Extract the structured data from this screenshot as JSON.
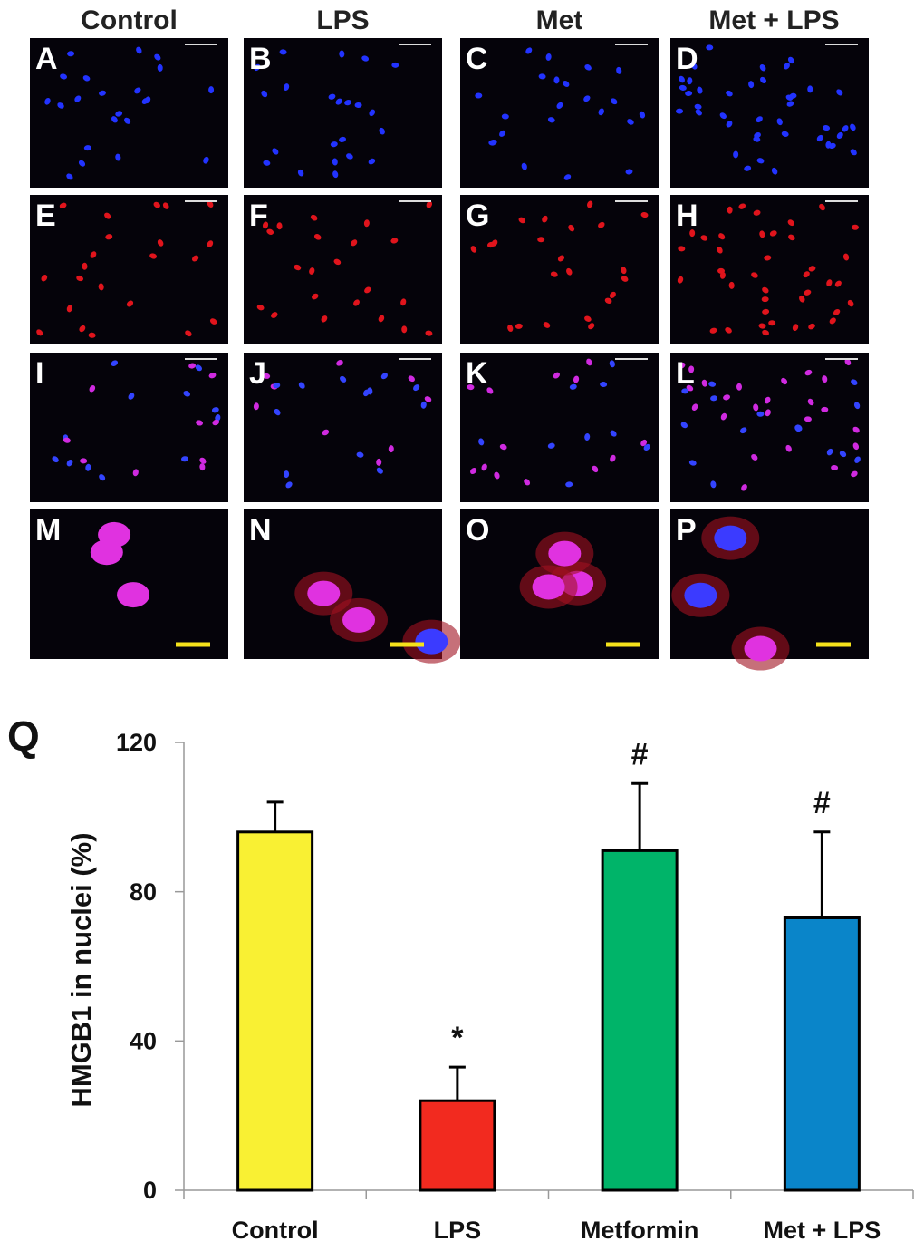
{
  "column_headers": [
    "Control",
    "LPS",
    "Met",
    "Met + LPS"
  ],
  "panels": [
    [
      "A",
      "B",
      "C",
      "D"
    ],
    [
      "E",
      "F",
      "G",
      "H"
    ],
    [
      "I",
      "J",
      "K",
      "L"
    ],
    [
      "M",
      "N",
      "O",
      "P"
    ]
  ],
  "figure_label": "Q",
  "chart_data": {
    "type": "bar",
    "y_label": "HMGB1 in nuclei (%)",
    "categories": [
      "Control",
      "LPS",
      "Metformin",
      "Met + LPS"
    ],
    "values": [
      96,
      24,
      91,
      73
    ],
    "errors": [
      8,
      9,
      18,
      23
    ],
    "colors": [
      "#f9f033",
      "#f22a1f",
      "#00b469",
      "#0a85c9"
    ],
    "annotations": [
      null,
      "*",
      "#",
      "#"
    ],
    "ylim": [
      0,
      120
    ],
    "yticks": [
      0,
      40,
      80,
      120
    ],
    "grid": false
  }
}
